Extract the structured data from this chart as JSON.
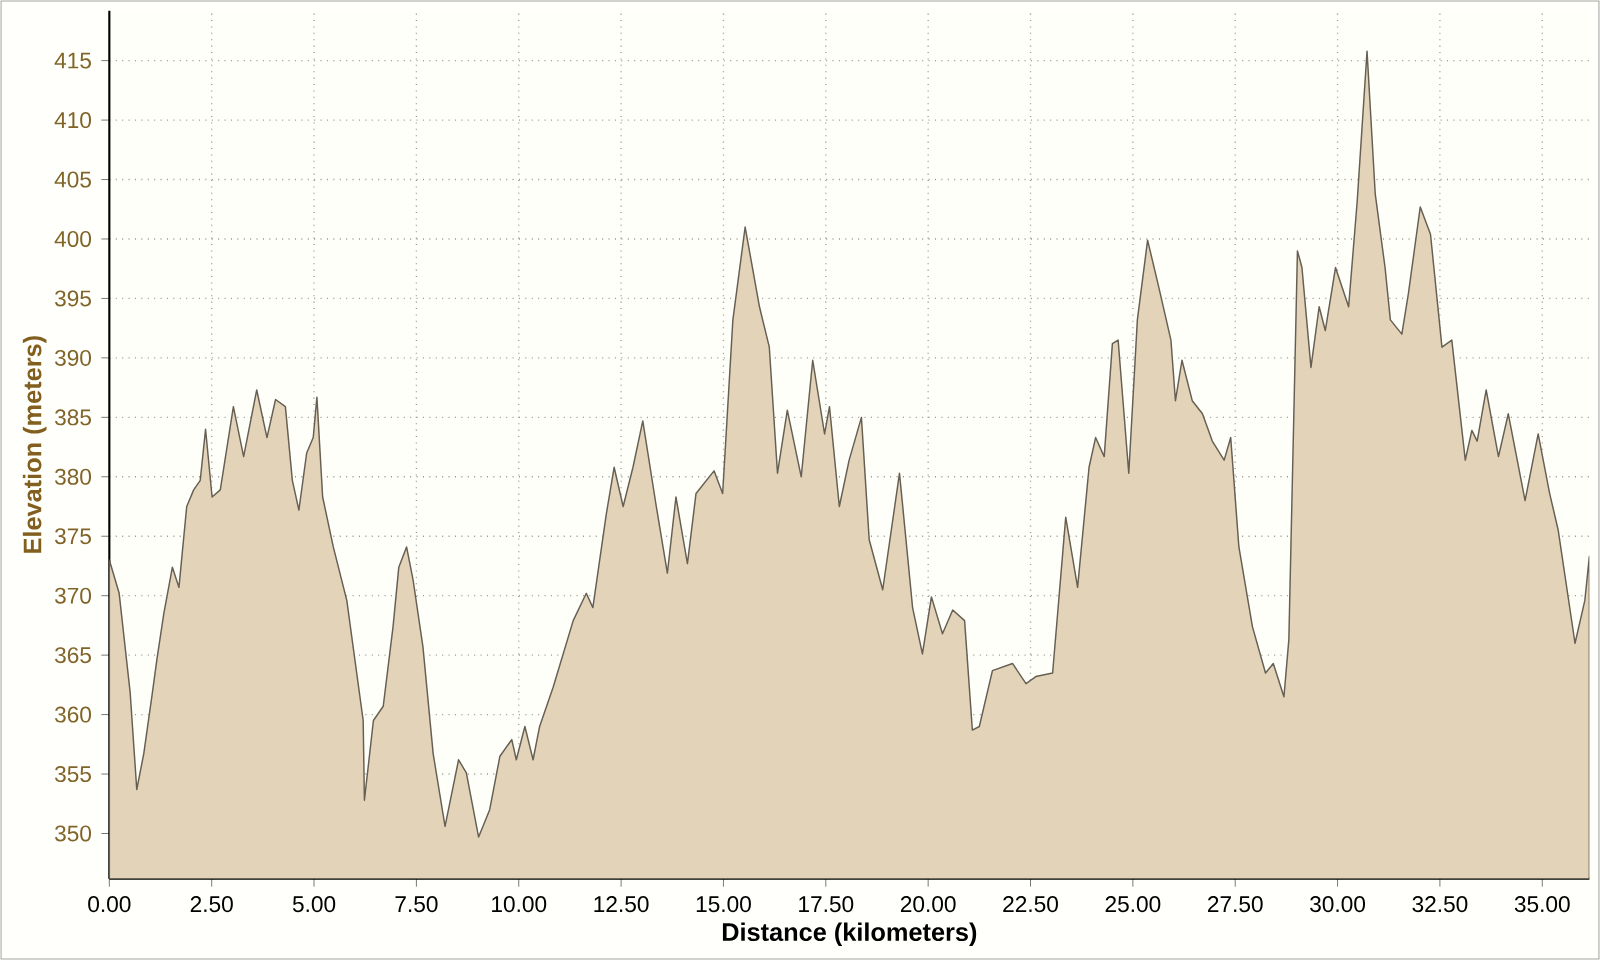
{
  "chart_data": {
    "type": "area",
    "xlabel": "Distance (kilometers)",
    "ylabel": "Elevation (meters)",
    "xlim": [
      0,
      36.15
    ],
    "ylim": [
      346.2,
      419.2
    ],
    "xticks": [
      {
        "value": 0,
        "label": "0.00"
      },
      {
        "value": 2.5,
        "label": "2.50"
      },
      {
        "value": 5,
        "label": "5.00"
      },
      {
        "value": 7.5,
        "label": "7.50"
      },
      {
        "value": 10,
        "label": "10.00"
      },
      {
        "value": 12.5,
        "label": "12.50"
      },
      {
        "value": 15,
        "label": "15.00"
      },
      {
        "value": 17.5,
        "label": "17.50"
      },
      {
        "value": 20,
        "label": "20.00"
      },
      {
        "value": 22.5,
        "label": "22.50"
      },
      {
        "value": 25,
        "label": "25.00"
      },
      {
        "value": 27.5,
        "label": "27.50"
      },
      {
        "value": 30,
        "label": "30.00"
      },
      {
        "value": 32.5,
        "label": "32.50"
      },
      {
        "value": 35,
        "label": "35.00"
      }
    ],
    "yticks": [
      350,
      355,
      360,
      365,
      370,
      375,
      380,
      385,
      390,
      395,
      400,
      405,
      410,
      415
    ],
    "grid": true,
    "series": [
      {
        "color": "#e2d3b9",
        "x": [
          0,
          0.24,
          0.51,
          0.67,
          0.84,
          1.05,
          1.16,
          1.33,
          1.54,
          1.7,
          1.89,
          2.06,
          2.22,
          2.35,
          2.51,
          2.71,
          3.03,
          3.28,
          3.6,
          3.85,
          4.06,
          4.3,
          4.47,
          4.63,
          4.82,
          4.98,
          5.07,
          5.21,
          5.47,
          5.8,
          6.2,
          6.23,
          6.45,
          6.69,
          6.93,
          7.07,
          7.26,
          7.42,
          7.66,
          7.91,
          8.2,
          8.53,
          8.72,
          9.02,
          9.29,
          9.54,
          9.83,
          9.94,
          10.15,
          10.35,
          10.51,
          10.84,
          11.33,
          11.65,
          11.81,
          12.14,
          12.33,
          12.55,
          12.79,
          13.03,
          13.36,
          13.63,
          13.84,
          14.12,
          14.33,
          14.77,
          14.98,
          15.23,
          15.53,
          15.88,
          16.12,
          16.32,
          16.56,
          16.9,
          17.18,
          17.47,
          17.59,
          17.83,
          18.07,
          18.37,
          18.56,
          18.89,
          19.3,
          19.62,
          19.86,
          20.08,
          20.35,
          20.6,
          20.89,
          21.08,
          21.25,
          21.57,
          22.06,
          22.39,
          22.63,
          23.04,
          23.36,
          23.65,
          23.93,
          24.09,
          24.3,
          24.5,
          24.64,
          24.9,
          25.11,
          25.36,
          25.63,
          25.93,
          26.04,
          26.2,
          26.45,
          26.7,
          26.94,
          27.23,
          27.39,
          27.59,
          27.92,
          28.24,
          28.43,
          28.69,
          28.81,
          29.02,
          29.13,
          29.35,
          29.55,
          29.7,
          29.95,
          30.27,
          30.48,
          30.72,
          30.92,
          31.16,
          31.29,
          31.57,
          31.73,
          32.02,
          32.27,
          32.55,
          32.79,
          33.12,
          33.28,
          33.41,
          33.63,
          33.93,
          34.17,
          34.58,
          34.9,
          35.18,
          35.39,
          35.8,
          36.04,
          36.15
        ],
        "values": [
          373,
          370.2,
          361.8,
          353.7,
          356.7,
          361.8,
          364.6,
          368.5,
          372.4,
          370.7,
          377.5,
          378.9,
          379.7,
          384,
          378.3,
          378.9,
          385.9,
          381.7,
          387.3,
          383.3,
          386.5,
          385.9,
          379.7,
          377.2,
          382,
          383.3,
          386.7,
          378.3,
          374.1,
          369.6,
          359.5,
          352.8,
          359.5,
          360.7,
          367.4,
          372.4,
          374.1,
          371.3,
          365.7,
          356.7,
          350.6,
          356.2,
          355.1,
          349.7,
          352,
          356.5,
          357.9,
          356.2,
          359,
          356.2,
          359,
          362.3,
          367.9,
          370.2,
          369,
          376.9,
          380.8,
          377.5,
          380.8,
          384.7,
          377.5,
          371.9,
          378.3,
          372.7,
          378.6,
          380.5,
          378.6,
          393.2,
          401,
          394.3,
          390.9,
          380.3,
          385.6,
          380,
          389.8,
          383.6,
          385.9,
          377.5,
          381.4,
          385,
          374.7,
          370.5,
          380.3,
          369,
          365.1,
          369.9,
          366.8,
          368.8,
          367.9,
          358.7,
          359,
          363.7,
          364.3,
          362.6,
          363.2,
          363.5,
          376.6,
          370.7,
          380.8,
          383.3,
          381.7,
          391.2,
          391.5,
          380.3,
          393.2,
          399.9,
          396,
          391.5,
          386.4,
          389.8,
          386.4,
          385.3,
          383,
          381.4,
          383.3,
          374.1,
          367.4,
          363.5,
          364.3,
          361.5,
          366.3,
          399,
          397.6,
          389.2,
          394.3,
          392.3,
          397.6,
          394.3,
          403.2,
          415.8,
          403.8,
          397.6,
          393.2,
          392,
          395.4,
          402.7,
          400.4,
          390.9,
          391.5,
          381.4,
          383.9,
          383,
          387.3,
          381.7,
          385.3,
          378,
          383.6,
          378.6,
          375.5,
          366,
          369.6,
          373.3
        ]
      }
    ]
  }
}
